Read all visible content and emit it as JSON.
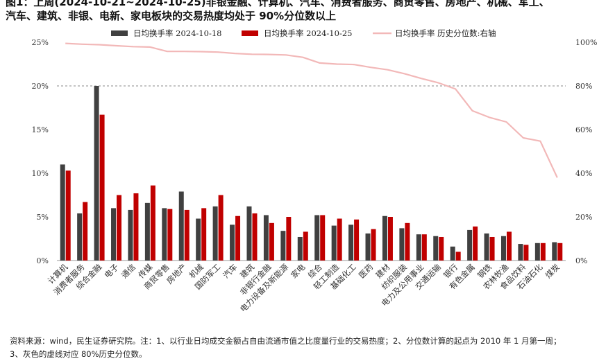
{
  "title": {
    "line1": "图1：上周(2024-10-21~2024-10-25)非银金融、计算机、汽车、消费者服务、商贸零售、房地产、机械、军工、",
    "line2": "汽车、建筑、非银、电新、家电板块的交易热度均处于 90%分位数以上"
  },
  "note": {
    "line1": "资料来源：wind，民生证券研究院。注：1、以行业日均成交金额占自由流通市值之比度量行业的交易热度；2、分位数计算的起点为 2010 年 1 月第一周；",
    "line2": "3、灰色的虚线对应 80%历史分位数。"
  },
  "chart_data": {
    "type": "bar",
    "categories": [
      "计算机",
      "消费者服务",
      "综合金融",
      "电子",
      "通信",
      "传媒",
      "商贸零售",
      "房地产",
      "机械",
      "国防军工",
      "汽车",
      "建筑",
      "非银行金融",
      "电力设备及新能源",
      "家电",
      "综合",
      "轻工制造",
      "基础化工",
      "医药",
      "建材",
      "纺织服装",
      "电力及公用事业",
      "交通运输",
      "银行",
      "有色金属",
      "钢铁",
      "农林牧渔",
      "食品饮料",
      "石油石化",
      "煤炭"
    ],
    "series": [
      {
        "name": "日均换手率 2024-10-18",
        "color": "#404040",
        "axis": "left",
        "values": [
          11.0,
          5.4,
          20.0,
          6.0,
          5.8,
          6.6,
          6.0,
          7.9,
          4.8,
          6.2,
          4.1,
          6.2,
          5.2,
          3.4,
          2.7,
          5.2,
          4.0,
          4.1,
          3.1,
          5.1,
          3.7,
          3.0,
          2.8,
          1.6,
          3.5,
          3.1,
          2.8,
          1.9,
          2.0,
          2.1
        ]
      },
      {
        "name": "日均换手率 2024-10-25",
        "color": "#c00000",
        "axis": "left",
        "values": [
          10.3,
          6.7,
          16.7,
          7.5,
          7.7,
          8.6,
          5.9,
          5.8,
          6.0,
          7.5,
          5.1,
          5.4,
          4.3,
          5.0,
          3.3,
          5.2,
          4.8,
          4.7,
          3.6,
          5.0,
          4.3,
          3.0,
          2.7,
          1.0,
          3.9,
          2.7,
          3.3,
          1.8,
          2.0,
          2.0
        ]
      },
      {
        "name": "日均换手率 历史分位数:右轴",
        "color": "#f2b8b8",
        "axis": "right",
        "type": "line",
        "values": [
          99.5,
          99.1,
          98.9,
          98.4,
          98.0,
          97.8,
          95.8,
          95.8,
          95.7,
          95.5,
          94.9,
          94.5,
          94.4,
          94.2,
          93.1,
          90.5,
          90.0,
          89.8,
          88.5,
          87.4,
          85.6,
          83.4,
          81.4,
          78.6,
          68.6,
          65.6,
          63.5,
          56.2,
          54.7,
          38.0
        ]
      }
    ],
    "yleft": {
      "ylim": [
        0,
        25
      ],
      "ticks": [
        "0%",
        "5%",
        "10%",
        "15%",
        "20%",
        "25%"
      ]
    },
    "yright": {
      "ylim": [
        0,
        100
      ],
      "ticks": [
        "0%",
        "20%",
        "40%",
        "60%",
        "80%",
        "100%"
      ]
    },
    "reference_line": {
      "axis": "left",
      "value": 20,
      "style": "dashed",
      "color": "#888888"
    },
    "legend_position": "top",
    "grid": false
  }
}
